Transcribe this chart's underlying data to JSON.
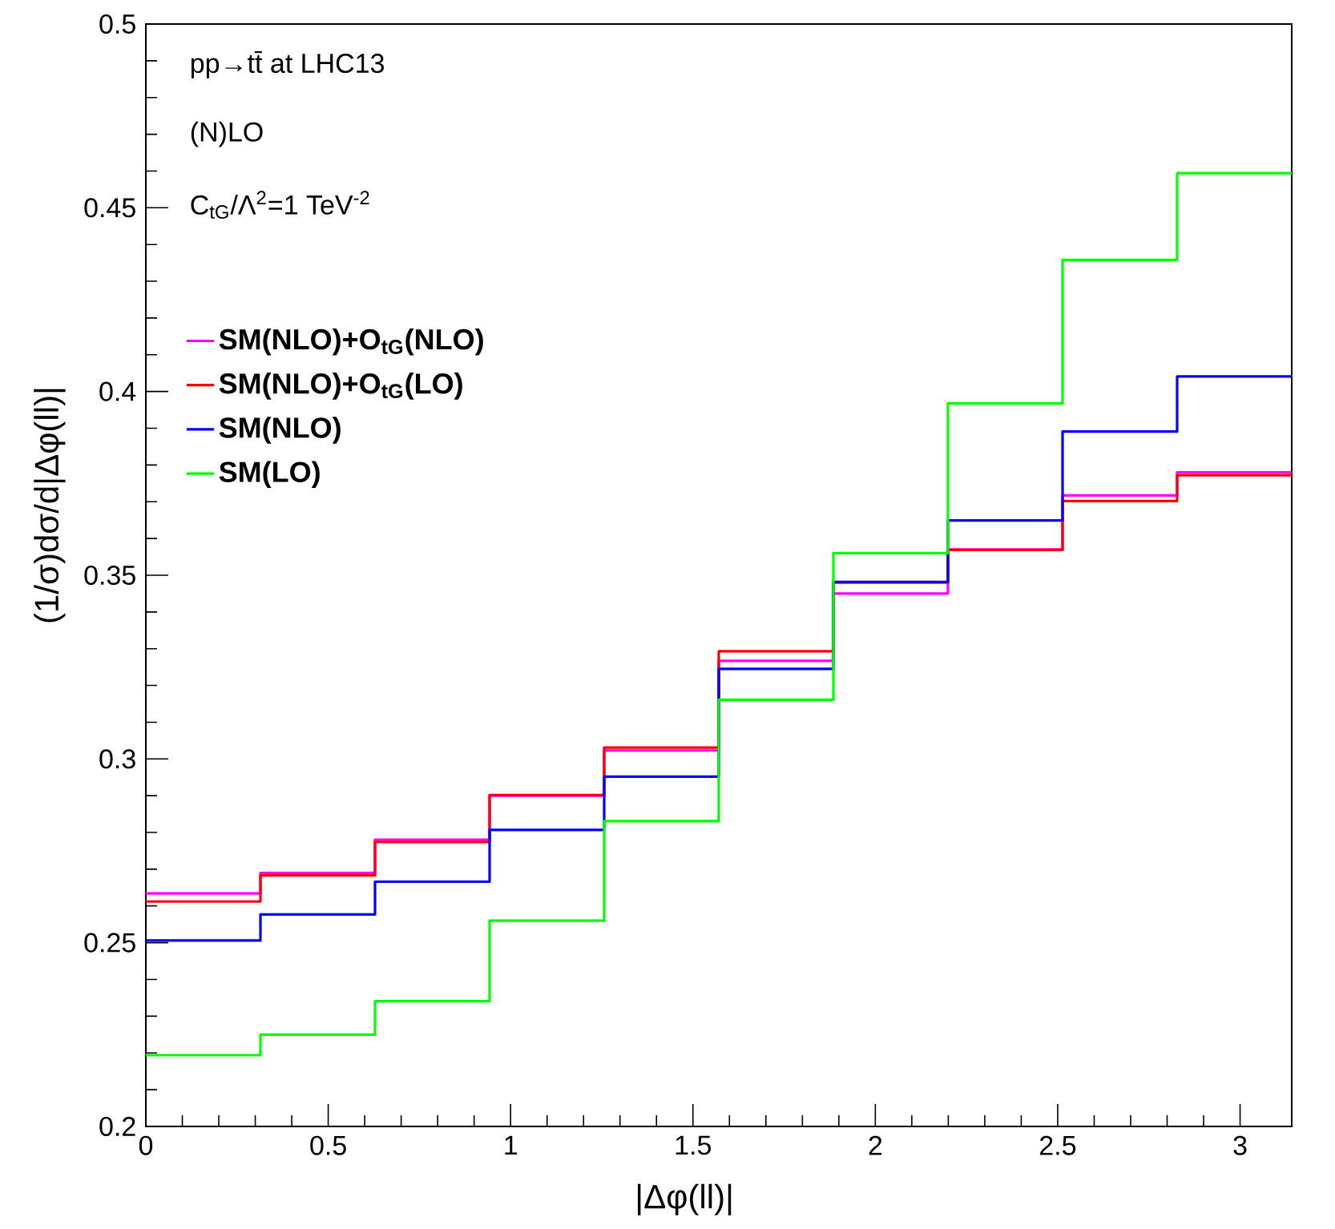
{
  "chart_data": {
    "type": "histogram",
    "xlabel": "|Δφ(ll)|",
    "ylabel": "(1/σ)dσ/d|Δφ(ll)|",
    "annotations": [
      "pp→tt̄ at LHC13",
      "(N)LO",
      "C$_{tG}$/Λ$^{2}$=1 TeV$^{-2}$"
    ],
    "bins": [
      0,
      0.3142,
      0.6283,
      0.9425,
      1.2566,
      1.5708,
      1.885,
      2.1991,
      2.5133,
      2.8274,
      3.1416
    ],
    "series": [
      {
        "name": "SM(NLO)+O$_{tG}$(NLO)",
        "color": "#ff00ff",
        "values": [
          0.2634,
          0.269,
          0.278,
          0.29,
          0.3023,
          0.3267,
          0.345,
          0.357,
          0.3717,
          0.378
        ]
      },
      {
        "name": "SM(NLO)+O$_{tG}$(LO)",
        "color": "#ff0000",
        "values": [
          0.2612,
          0.2683,
          0.2774,
          0.2902,
          0.3031,
          0.3293,
          0.348,
          0.3569,
          0.3702,
          0.3772
        ]
      },
      {
        "name": "SM(NLO)",
        "color": "#0000ff",
        "values": [
          0.2506,
          0.2577,
          0.2666,
          0.2807,
          0.2952,
          0.3245,
          0.3482,
          0.3649,
          0.3891,
          0.4041
        ]
      },
      {
        "name": "SM(LO)",
        "color": "#00ff00",
        "values": [
          0.2194,
          0.225,
          0.2341,
          0.256,
          0.2831,
          0.3161,
          0.356,
          0.3968,
          0.4358,
          0.4594
        ]
      }
    ],
    "xlim": [
      0,
      3.1416
    ],
    "ylim": [
      0.2,
      0.5
    ],
    "xticks": [
      0,
      0.5,
      1,
      1.5,
      2,
      2.5,
      3
    ],
    "yticks": [
      0.2,
      0.25,
      0.3,
      0.35,
      0.4,
      0.45,
      0.5
    ],
    "legend": "top left",
    "grid": false
  }
}
